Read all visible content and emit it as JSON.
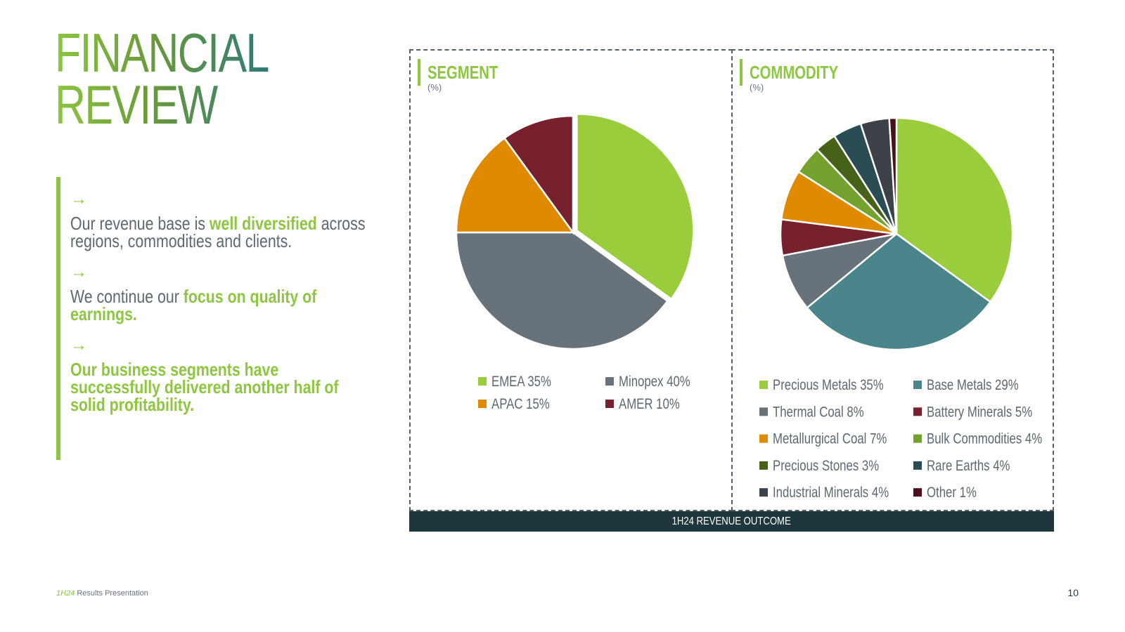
{
  "header": {
    "title_line1": "FINANCIAL",
    "title_line2": "REVIEW"
  },
  "bullets": [
    {
      "arrow": "→",
      "segments": [
        {
          "text": "Our revenue base is ",
          "hl": false
        },
        {
          "text": "well diversified",
          "hl": true
        },
        {
          "text": " across regions, commodities and clients.",
          "hl": false
        }
      ]
    },
    {
      "arrow": "→",
      "segments": [
        {
          "text": "We continue our ",
          "hl": false
        },
        {
          "text": "focus on quality of earnings.",
          "hl": true
        }
      ]
    },
    {
      "arrow": "→",
      "segments": [
        {
          "text": "Our business segments have successfully delivered another half of solid profitability.",
          "hl": true
        }
      ]
    }
  ],
  "panels": {
    "segment": {
      "title": "SEGMENT",
      "unit": "(%)"
    },
    "commodity": {
      "title": "COMMODITY",
      "unit": "(%)"
    }
  },
  "footer": {
    "bar_label": "1H24 REVENUE OUTCOME",
    "presentation_accent": "1H24",
    "presentation_label": " Results Presentation",
    "page_number": "10"
  },
  "colors": {
    "accent": "#8dc63f",
    "footer_bar": "#1d373d",
    "text": "#5d6873"
  },
  "chart_data": [
    {
      "type": "pie",
      "title": "SEGMENT",
      "unit": "(%)",
      "slices": [
        {
          "label": "EMEA",
          "value": 35,
          "legend": "EMEA 35%",
          "color": "#9acd3c"
        },
        {
          "label": "Minopex",
          "value": 40,
          "legend": "Minopex 40%",
          "color": "#68727b"
        },
        {
          "label": "APAC",
          "value": 15,
          "legend": "APAC 15%",
          "color": "#e08a00"
        },
        {
          "label": "AMER",
          "value": 10,
          "legend": "AMER 10%",
          "color": "#76212d"
        }
      ]
    },
    {
      "type": "pie",
      "title": "COMMODITY",
      "unit": "(%)",
      "slices": [
        {
          "label": "Precious Metals",
          "value": 35,
          "legend": "Precious Metals 35%",
          "color": "#9acd3c"
        },
        {
          "label": "Base Metals",
          "value": 29,
          "legend": "Base Metals 29%",
          "color": "#4a858c"
        },
        {
          "label": "Thermal Coal",
          "value": 8,
          "legend": "Thermal Coal 8%",
          "color": "#68727b"
        },
        {
          "label": "Battery Minerals",
          "value": 5,
          "legend": "Battery Minerals 5%",
          "color": "#76212d"
        },
        {
          "label": "Metallurgical Coal",
          "value": 7,
          "legend": "Metallurgical Coal 7%",
          "color": "#e08a00"
        },
        {
          "label": "Bulk Commodities",
          "value": 4,
          "legend": "Bulk Commodities 4%",
          "color": "#74a22e"
        },
        {
          "label": "Precious Stones",
          "value": 3,
          "legend": "Precious Stones 3%",
          "color": "#476218"
        },
        {
          "label": "Rare Earths",
          "value": 4,
          "legend": "Rare Earths 4%",
          "color": "#2a4d55"
        },
        {
          "label": "Industrial Minerals",
          "value": 4,
          "legend": "Industrial Minerals 4%",
          "color": "#3d4148"
        },
        {
          "label": "Other",
          "value": 1,
          "legend": "Other 1%",
          "color": "#4a0f1a"
        }
      ]
    }
  ]
}
